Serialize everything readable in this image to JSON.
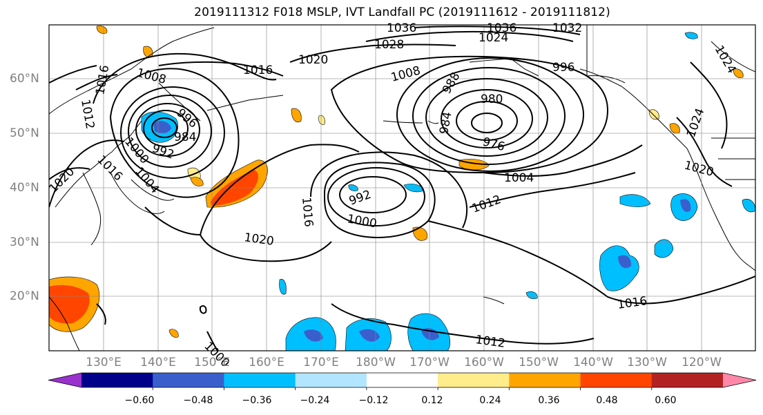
{
  "title": "2019111312 F018 MSLP, IVT Landfall PC (2019111612 - 2019111812)",
  "lat_labels": [
    "60°N",
    "50°N",
    "40°N",
    "30°N",
    "20°N"
  ],
  "lon_labels": [
    "130°E",
    "140°E",
    "150°E",
    "160°E",
    "170°E",
    "180°W",
    "170°W",
    "160°W",
    "150°W",
    "140°W",
    "130°W",
    "120°W"
  ],
  "colorbar": {
    "tick_labels": [
      "−0.60",
      "−0.48",
      "−0.36",
      "−0.24",
      "−0.12",
      "0.12",
      "0.24",
      "0.36",
      "0.48",
      "0.60"
    ],
    "colors": [
      "#9932CC",
      "#00008B",
      "#3A5FCD",
      "#00BFFF",
      "#B2E5FF",
      "#FFFFFF",
      "#FFEC8B",
      "#FFA500",
      "#FF4500",
      "#B22222",
      "#FF88AA"
    ]
  },
  "contour_labels": [
    "1036",
    "1036",
    "1032",
    "1028",
    "1024",
    "1024",
    "1020",
    "1016",
    "1016",
    "1008",
    "1008",
    "1012",
    "1016",
    "996",
    "984",
    "992",
    "1000",
    "988",
    "980",
    "984",
    "976",
    "996",
    "1004",
    "1024",
    "1020",
    "1020",
    "1004",
    "1016",
    "1020",
    "992",
    "1000",
    "1012",
    "1016",
    "1012",
    "1000"
  ]
}
